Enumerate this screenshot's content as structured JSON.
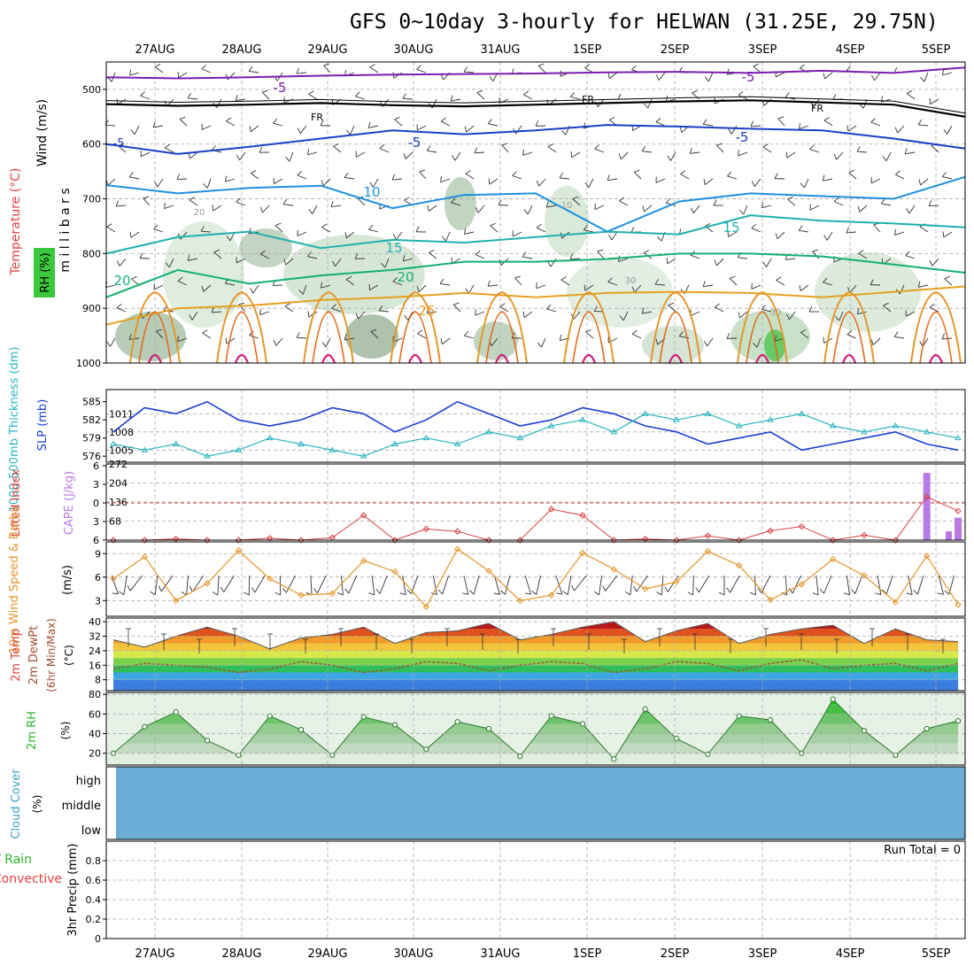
{
  "title": "GFS 0~10day 3-hourly for HELWAN (31.25E, 29.75N)",
  "colors": {
    "frame": "#000000",
    "grid": "#aaaaaa",
    "slp": "#1a3fd0",
    "thickness": "#2ab5c0",
    "lifted": "#d94040",
    "cape": "#b87ae6",
    "wind": "#e69528",
    "barb": "#333333",
    "dewpt": "#a05030",
    "rh_fill": "#3cc83c",
    "cloud": "#6aaed6",
    "run_total": "#000000"
  },
  "chart_data": [
    {
      "panel": "upper_air",
      "type": "contour",
      "xaxis_dates": [
        "27AUG",
        "28AUG",
        "29AUG",
        "30AUG",
        "31AUG",
        "1SEP",
        "2SEP",
        "3SEP",
        "4SEP",
        "5SEP"
      ],
      "ylabel_wind": "Wind (m/s)",
      "ylabel_temp": "Temperature (°C)",
      "ylabel_rh": "RH (%)",
      "ylabel_pressure": "m i l l i b a r s",
      "yticks": [
        500,
        600,
        700,
        800,
        900,
        1000
      ],
      "ylim": [
        450,
        1000
      ],
      "contour_labels": [
        "-5",
        "-5",
        "FR",
        "FR",
        "FR",
        "-5",
        "-5",
        "-5",
        "10",
        "15",
        "15",
        "20",
        "20",
        "25",
        "10",
        "20",
        "30",
        "30"
      ],
      "isotherms": [
        {
          "label": "-5",
          "color": "#7a1fb0",
          "p": [
            478,
            480,
            478,
            475,
            473,
            472,
            471,
            469,
            468,
            470,
            466,
            470,
            460
          ]
        },
        {
          "label": "FR",
          "color": "#000000",
          "p": [
            527,
            530,
            528,
            525,
            529,
            531,
            528,
            525,
            522,
            520,
            524,
            528,
            550
          ]
        },
        {
          "label": "-5",
          "color": "#1840c8",
          "p": [
            600,
            618,
            605,
            590,
            575,
            582,
            575,
            565,
            568,
            572,
            575,
            590,
            608
          ]
        },
        {
          "label": "10",
          "color": "#1e90e0",
          "p": [
            675,
            690,
            680,
            676,
            717,
            693,
            690,
            760,
            705,
            690,
            695,
            700,
            660
          ]
        },
        {
          "label": "15",
          "color": "#20b0b0",
          "p": [
            800,
            770,
            760,
            790,
            775,
            780,
            770,
            760,
            765,
            730,
            740,
            745,
            752
          ]
        },
        {
          "label": "20",
          "color": "#14b070",
          "p": [
            880,
            830,
            855,
            840,
            830,
            815,
            815,
            810,
            800,
            800,
            805,
            820,
            835
          ]
        },
        {
          "label": "25",
          "color": "#e6a020",
          "p": [
            930,
            900,
            895,
            885,
            880,
            872,
            880,
            872,
            870,
            872,
            880,
            870,
            860
          ]
        }
      ]
    },
    {
      "panel": "slp_thickness",
      "type": "line",
      "ylabel": "SLP (mb)",
      "ylabel2": "1000-500mb Thickness (dm)",
      "yticks_left": [
        576,
        579,
        582,
        585
      ],
      "yticks_right": [
        1005,
        1008,
        1011
      ],
      "ylim_slp": [
        1003,
        1015
      ],
      "series": [
        {
          "name": "SLP (mb)",
          "values": [
            1008,
            1012,
            1011,
            1013,
            1010,
            1009,
            1010,
            1012,
            1011,
            1008,
            1010,
            1013,
            1011,
            1009,
            1010,
            1012,
            1011,
            1009,
            1008,
            1006,
            1007,
            1008,
            1005,
            1006,
            1007,
            1008,
            1006,
            1005
          ]
        },
        {
          "name": "Thickness (dm)",
          "values": [
            578,
            577,
            578,
            576,
            577,
            579,
            578,
            577,
            576,
            578,
            579,
            578,
            580,
            579,
            581,
            582,
            580,
            583,
            582,
            583,
            581,
            582,
            583,
            581,
            580,
            581,
            580,
            579
          ]
        }
      ]
    },
    {
      "panel": "stability",
      "type": "line",
      "ylabel": "Lifted Index",
      "ylabel2": "CAPE (J/kg)",
      "yticks_left": [
        -6,
        -3,
        0,
        3,
        6
      ],
      "yticks_right": [
        68,
        136,
        204,
        272
      ],
      "series": [
        {
          "name": "Lifted Index",
          "values": [
            6,
            6,
            5.8,
            6,
            6,
            5.7,
            6,
            5.6,
            2,
            6,
            4.2,
            4.6,
            6,
            6,
            1,
            2,
            6,
            5.8,
            6,
            5.3,
            6,
            4.5,
            3.8,
            6,
            5.2,
            6,
            -1,
            1.3
          ]
        },
        {
          "name": "CAPE (J/kg)",
          "values": [
            0,
            0,
            0,
            0,
            0,
            0,
            0,
            0,
            0,
            0,
            0,
            0,
            0,
            0,
            0,
            0,
            0,
            0,
            0,
            0,
            0,
            0,
            0,
            0,
            0,
            0,
            240,
            80
          ]
        }
      ]
    },
    {
      "panel": "wind10m",
      "type": "line",
      "ylabel": "10m Wind Speed & Barbs",
      "yunit": "(m/s)",
      "yticks": [
        3,
        6,
        9
      ],
      "ylim": [
        1,
        10.5
      ],
      "series": [
        {
          "name": "10m Wind Speed",
          "values": [
            5.8,
            8.6,
            3,
            5.2,
            9.4,
            5.8,
            3.7,
            3.9,
            8.1,
            6.7,
            2.2,
            9.6,
            6.8,
            3.0,
            3.7,
            9.1,
            7.0,
            4.5,
            5.4,
            9.3,
            7.5,
            3.1,
            5.1,
            8.3,
            6.2,
            2.8,
            8.7,
            2.5
          ]
        }
      ]
    },
    {
      "panel": "temperature",
      "type": "area",
      "ylabel": "2m Temp",
      "ylabel2": "2m DewPt",
      "ylabel3": "(6hr Min/Max)",
      "yunit": "(°C)",
      "yticks": [
        8,
        16,
        24,
        32,
        40
      ],
      "series": [
        {
          "name": "2m Temp",
          "values": [
            30,
            26,
            32,
            37,
            32,
            25,
            31,
            33,
            37,
            28,
            34,
            35,
            39,
            30,
            33,
            37,
            40,
            29,
            35,
            39,
            28,
            33,
            36,
            38,
            28,
            36,
            30,
            29
          ]
        },
        {
          "name": "2m DewPt",
          "values": [
            14,
            17,
            16,
            15,
            12,
            14,
            18,
            16,
            12,
            14,
            18,
            17,
            13,
            16,
            18,
            17,
            12,
            14,
            18,
            17,
            13,
            17,
            19,
            14,
            16,
            17,
            13,
            17
          ]
        }
      ]
    },
    {
      "panel": "rh2m",
      "type": "area",
      "ylabel": "2m RH",
      "yunit": "(%)",
      "yticks": [
        20,
        40,
        60,
        80
      ],
      "series": [
        {
          "name": "2m RH",
          "values": [
            20,
            47,
            62,
            33,
            18,
            58,
            44,
            18,
            57,
            49,
            24,
            52,
            45,
            17,
            58,
            50,
            14,
            65,
            35,
            19,
            58,
            54,
            20,
            75,
            43,
            18,
            45,
            53
          ]
        }
      ]
    },
    {
      "panel": "cloud_cover",
      "type": "heatmap",
      "ylabel": "Cloud Cover",
      "yunit": "(%)",
      "levels": [
        "high",
        "middle",
        "low"
      ]
    },
    {
      "panel": "precip",
      "type": "bar",
      "ylabel": "3hr Precip (mm)",
      "ylabel2": "Total / Rain",
      "ylabel3": "Convective",
      "yticks": [
        0,
        0.2,
        0.4,
        0.6,
        0.8
      ],
      "ylim": [
        0,
        1.0
      ],
      "run_total": "Run Total = 0",
      "values": []
    }
  ]
}
